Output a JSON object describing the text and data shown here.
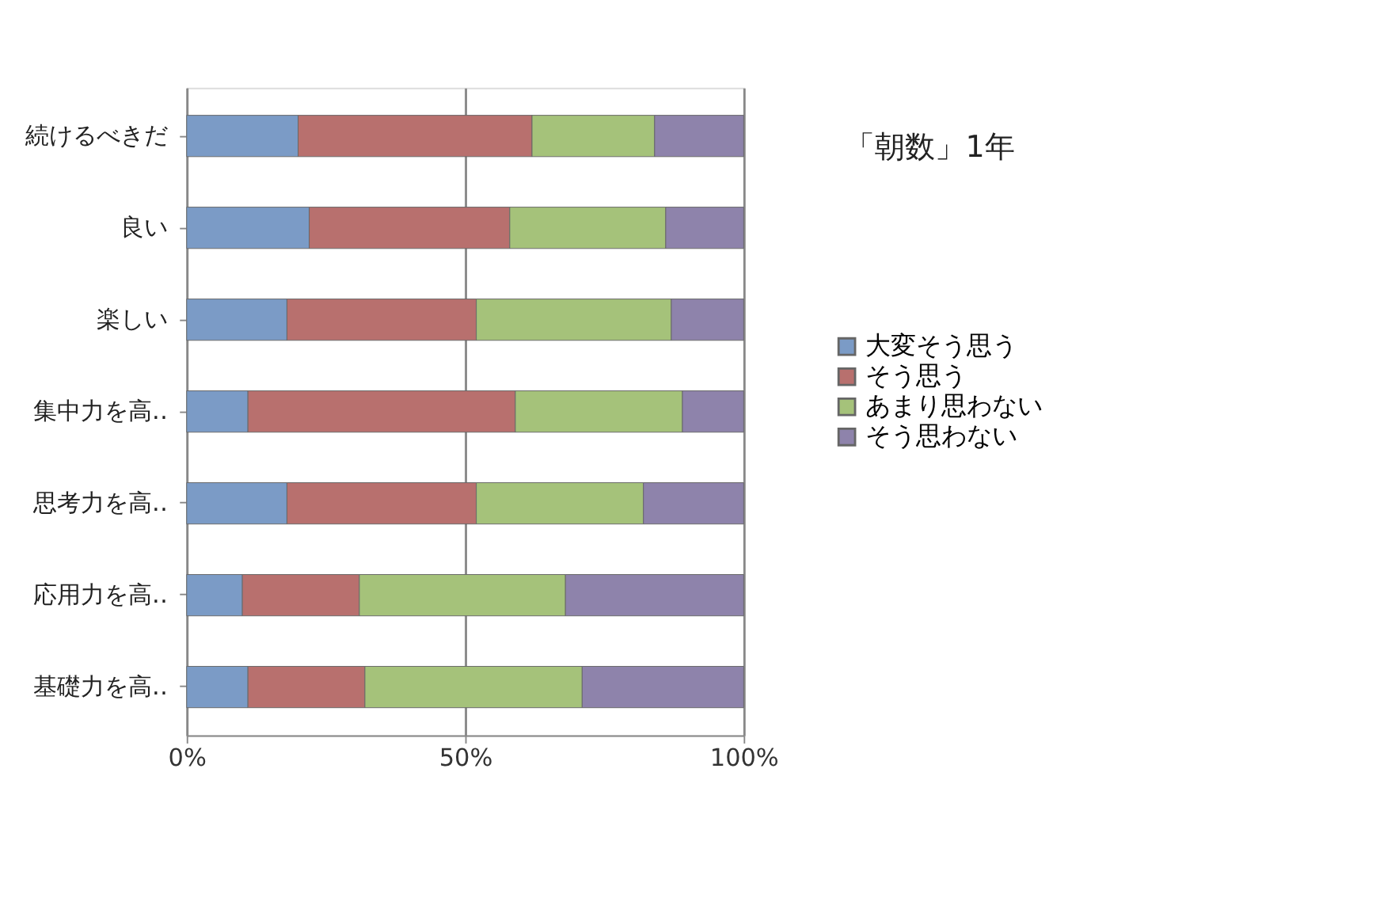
{
  "chart_data": {
    "type": "bar",
    "orientation": "horizontal",
    "stacked": true,
    "title": "「朝数」1年",
    "categories": [
      "続けるべきだ",
      "良い",
      "楽しい",
      "集中力を高‥",
      "思考力を高‥",
      "応用力を高‥",
      "基礎力を高‥"
    ],
    "series": [
      {
        "name": "大変そう思う",
        "color": "#7b9bc6",
        "values": [
          0.2,
          0.22,
          0.18,
          0.11,
          0.18,
          0.1,
          0.11
        ]
      },
      {
        "name": "そう思う",
        "color": "#b8706e",
        "values": [
          0.42,
          0.36,
          0.34,
          0.48,
          0.34,
          0.21,
          0.21
        ]
      },
      {
        "name": "あまり思わない",
        "color": "#a5c27a",
        "values": [
          0.22,
          0.28,
          0.35,
          0.3,
          0.3,
          0.37,
          0.39
        ]
      },
      {
        "name": "そう思わない",
        "color": "#8e83ab",
        "values": [
          0.16,
          0.14,
          0.13,
          0.11,
          0.18,
          0.32,
          0.29
        ]
      }
    ],
    "xlim": [
      0,
      1
    ],
    "xticks": [
      {
        "value": 0,
        "label": "0%"
      },
      {
        "value": 0.5,
        "label": "50%"
      },
      {
        "value": 1,
        "label": "100%"
      }
    ],
    "grid": "x",
    "legend": "right"
  }
}
